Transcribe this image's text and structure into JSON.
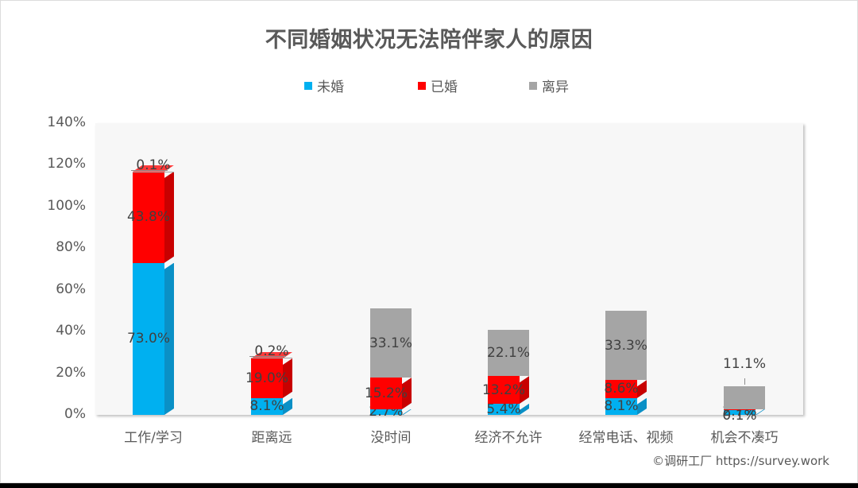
{
  "title": "不同婚姻状况无法陪伴家人的原因",
  "legend": [
    {
      "label": "未婚",
      "color": "#00b0f0"
    },
    {
      "label": "已婚",
      "color": "#ff0000"
    },
    {
      "label": "离异",
      "color": "#a5a5a5"
    }
  ],
  "yaxis": {
    "ticks": [
      "0%",
      "20%",
      "40%",
      "60%",
      "80%",
      "100%",
      "120%",
      "140%"
    ]
  },
  "footer": "©调研工厂  https://survey.work",
  "chart_data": {
    "type": "bar",
    "stacked": true,
    "title": "不同婚姻状况无法陪伴家人的原因",
    "categories": [
      "工作/学习",
      "距离远",
      "没时间",
      "经济不允许",
      "经常电话、视频",
      "机会不凑巧"
    ],
    "series": [
      {
        "name": "未婚",
        "color": "#00b0f0",
        "values": [
          73.0,
          8.1,
          2.7,
          5.4,
          8.1,
          2.7
        ]
      },
      {
        "name": "已婚",
        "color": "#ff0000",
        "values": [
          43.8,
          19.0,
          15.2,
          13.2,
          8.6,
          0.1
        ]
      },
      {
        "name": "离异",
        "color": "#a5a5a5",
        "values": [
          0.1,
          0.2,
          33.1,
          22.1,
          33.3,
          11.1
        ]
      }
    ],
    "labels": [
      [
        "73.0%",
        "43.8%",
        "0.1%"
      ],
      [
        "8.1%",
        "19.0%",
        "0.2%"
      ],
      [
        "2.7%",
        "15.2%",
        "33.1%"
      ],
      [
        "5.4%",
        "13.2%",
        "22.1%"
      ],
      [
        "8.1%",
        "8.6%",
        "33.3%"
      ],
      [
        "2.7%",
        "0.1%",
        "11.1%"
      ]
    ],
    "xlabel": "",
    "ylabel": "",
    "ylim": [
      0,
      140
    ],
    "ytick_step": 20,
    "grid": false,
    "legend_position": "top"
  }
}
